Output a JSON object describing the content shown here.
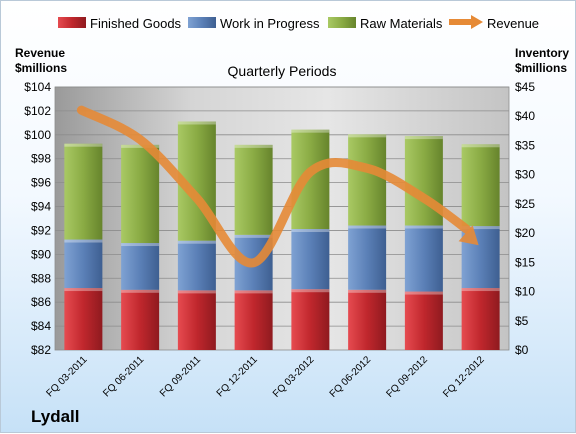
{
  "company": "Lydall",
  "chart_data": {
    "type": "bar",
    "stacked": true,
    "title": "Quarterly Periods",
    "categories": [
      "FQ 03-2011",
      "FQ 06-2011",
      "FQ 09-2011",
      "FQ 12-2011",
      "FQ 03-2012",
      "FQ 06-2012",
      "FQ 09-2012",
      "FQ 12-2012"
    ],
    "left_axis": {
      "label_lines": [
        "Revenue",
        "$millions"
      ],
      "ylim": [
        82,
        104
      ],
      "step": 2,
      "tick_prefix": "$"
    },
    "right_axis": {
      "label_lines": [
        "Inventory",
        "$millions"
      ],
      "ylim": [
        0,
        45
      ],
      "step": 5,
      "tick_prefix": "$"
    },
    "series": [
      {
        "name": "Finished Goods",
        "axis": "right",
        "color": "#c0272d",
        "values": [
          10.6,
          10.3,
          10.2,
          10.2,
          10.4,
          10.3,
          10.0,
          10.6
        ]
      },
      {
        "name": "Work in Progress",
        "axis": "right",
        "color": "#5b80b7",
        "values": [
          8.3,
          8.0,
          8.5,
          9.5,
          10.3,
          11.0,
          11.3,
          10.6
        ]
      },
      {
        "name": "Raw Materials",
        "axis": "right",
        "color": "#8aab44",
        "values": [
          16.4,
          16.8,
          20.4,
          15.4,
          17.0,
          15.6,
          15.3,
          14.0
        ]
      },
      {
        "name": "Revenue",
        "axis": "left",
        "type": "line",
        "color": "#e68a36",
        "values": [
          101.9,
          99.6,
          94.7,
          89.3,
          96.9,
          97.2,
          94.7,
          91.1
        ]
      }
    ],
    "grid": true,
    "legend": "top"
  }
}
